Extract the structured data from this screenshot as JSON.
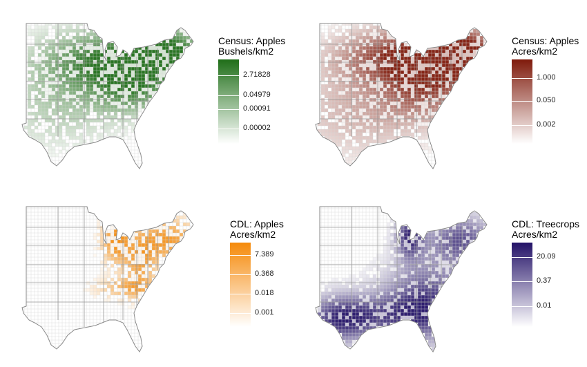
{
  "panels": [
    {
      "id": "census-bushels",
      "legend_title_1": "Census: Apples",
      "legend_title_2": "Bushels/km2",
      "color_dark": "#1f6e18",
      "color_light": "#ffffff",
      "ticks": [
        "2.71828",
        "0.04979",
        "0.00091",
        "0.00002"
      ],
      "map_icon": "us-county-choropleth-map"
    },
    {
      "id": "census-acres",
      "legend_title_1": "Census: Apples",
      "legend_title_2": "Acres/km2",
      "color_dark": "#7f1a0b",
      "color_light": "#ffffff",
      "ticks": [
        "1.000",
        "0.050",
        "0.002"
      ],
      "map_icon": "us-county-choropleth-map"
    },
    {
      "id": "cdl-apples",
      "legend_title_1": "CDL: Apples",
      "legend_title_2": "Acres/km2",
      "color_dark": "#f58a0a",
      "color_light": "#ffffff",
      "ticks": [
        "7.389",
        "0.368",
        "0.018",
        "0.001"
      ],
      "map_icon": "us-county-choropleth-map"
    },
    {
      "id": "cdl-treecrops",
      "legend_title_1": "CDL: Treecrops",
      "legend_title_2": "Acres/km2",
      "color_dark": "#231267",
      "color_light": "#ffffff",
      "ticks": [
        "20.09",
        "0.37",
        "0.01"
      ],
      "map_icon": "us-county-choropleth-map"
    }
  ]
}
